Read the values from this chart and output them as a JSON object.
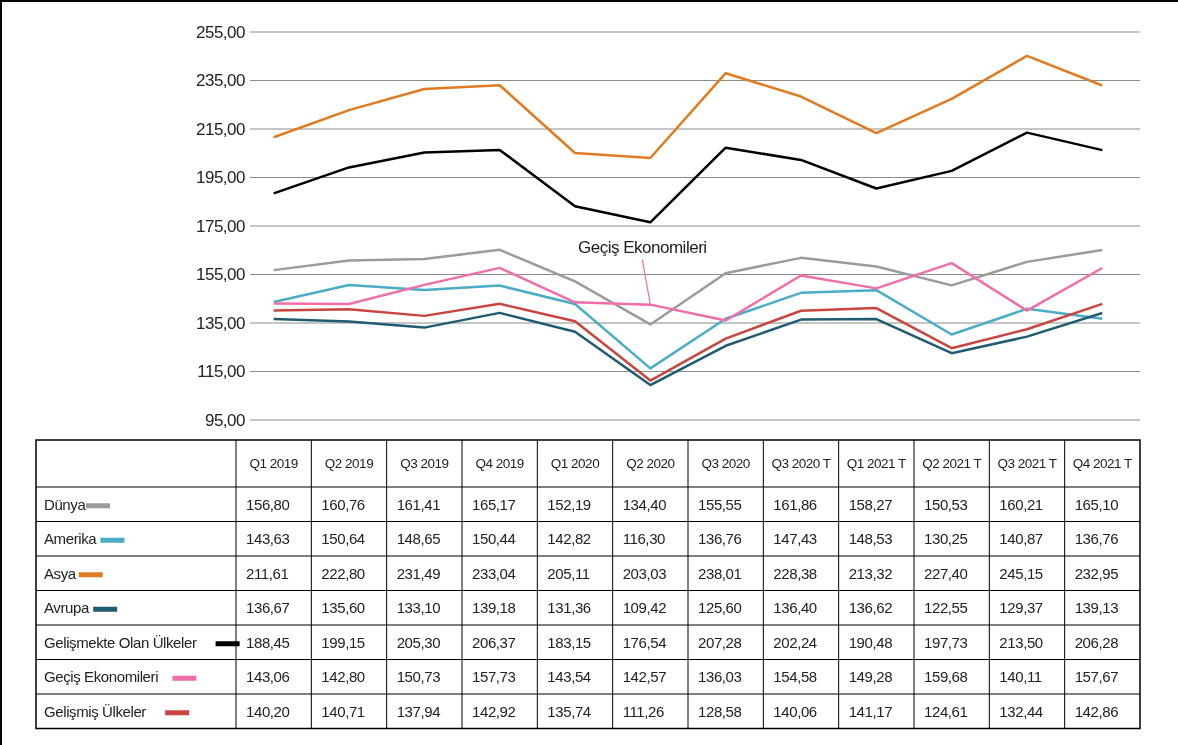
{
  "chart_data": {
    "type": "line",
    "categories": [
      "Q1 2019",
      "Q2 2019",
      "Q3 2019",
      "Q4 2019",
      "Q1 2020",
      "Q2 2020",
      "Q3 2020",
      "Q3 2020 T",
      "Q1 2021 T",
      "Q2 2021 T",
      "Q3 2021 T",
      "Q4 2021 T"
    ],
    "series": [
      {
        "name": "Dünya",
        "color": "#9b9b9b",
        "values": [
          156.8,
          160.76,
          161.41,
          165.17,
          152.19,
          134.4,
          155.55,
          161.86,
          158.27,
          150.53,
          160.21,
          165.1
        ],
        "value_labels": [
          "156,80",
          "160,76",
          "161,41",
          "165,17",
          "152,19",
          "134,40",
          "155,55",
          "161,86",
          "158,27",
          "150,53",
          "160,21",
          "165,10"
        ]
      },
      {
        "name": "Amerika",
        "color": "#4bacc6",
        "values": [
          143.63,
          150.64,
          148.65,
          150.44,
          142.82,
          116.3,
          136.76,
          147.43,
          148.53,
          130.25,
          140.87,
          136.76
        ],
        "value_labels": [
          "143,63",
          "150,64",
          "148,65",
          "150,44",
          "142,82",
          "116,30",
          "136,76",
          "147,43",
          "148,53",
          "130,25",
          "140,87",
          "136,76"
        ]
      },
      {
        "name": "Asya",
        "color": "#e07b22",
        "values": [
          211.61,
          222.8,
          231.49,
          233.04,
          205.11,
          203.03,
          238.01,
          228.38,
          213.32,
          227.4,
          245.15,
          232.95
        ],
        "value_labels": [
          "211,61",
          "222,80",
          "231,49",
          "233,04",
          "205,11",
          "203,03",
          "238,01",
          "228,38",
          "213,32",
          "227,40",
          "245,15",
          "232,95"
        ]
      },
      {
        "name": "Avrupa",
        "color": "#1f5c72",
        "values": [
          136.67,
          135.6,
          133.1,
          139.18,
          131.36,
          109.42,
          125.6,
          136.4,
          136.62,
          122.55,
          129.37,
          139.13
        ],
        "value_labels": [
          "136,67",
          "135,60",
          "133,10",
          "139,18",
          "131,36",
          "109,42",
          "125,60",
          "136,40",
          "136,62",
          "122,55",
          "129,37",
          "139,13"
        ]
      },
      {
        "name": "Gelişmekte Olan Ülkeler",
        "color": "#000000",
        "values": [
          188.45,
          199.15,
          205.3,
          206.37,
          183.15,
          176.54,
          207.28,
          202.24,
          190.48,
          197.73,
          213.5,
          206.28
        ],
        "value_labels": [
          "188,45",
          "199,15",
          "205,30",
          "206,37",
          "183,15",
          "176,54",
          "207,28",
          "202,24",
          "190,48",
          "197,73",
          "213,50",
          "206,28"
        ]
      },
      {
        "name": "Geçiş Ekonomileri",
        "color": "#f06eaa",
        "values": [
          143.06,
          142.8,
          150.73,
          157.73,
          143.54,
          142.57,
          136.03,
          154.58,
          149.28,
          159.68,
          140.11,
          157.67
        ],
        "value_labels": [
          "143,06",
          "142,80",
          "150,73",
          "157,73",
          "143,54",
          "142,57",
          "136,03",
          "154,58",
          "149,28",
          "159,68",
          "140,11",
          "157,67"
        ]
      },
      {
        "name": "Gelişmiş Ülkeler",
        "color": "#c8463f",
        "values": [
          140.2,
          140.71,
          137.94,
          142.92,
          135.74,
          111.26,
          128.58,
          140.06,
          141.17,
          124.61,
          132.44,
          142.86
        ],
        "value_labels": [
          "140,20",
          "140,71",
          "137,94",
          "142,92",
          "135,74",
          "111,26",
          "128,58",
          "140,06",
          "141,17",
          "124,61",
          "132,44",
          "142,86"
        ]
      }
    ],
    "ylim": [
      95,
      255
    ],
    "yticks": [
      {
        "value": 95,
        "label": "95,00"
      },
      {
        "value": 115,
        "label": "115,00"
      },
      {
        "value": 135,
        "label": "135,00"
      },
      {
        "value": 155,
        "label": "155,00"
      },
      {
        "value": 175,
        "label": "175,00"
      },
      {
        "value": 195,
        "label": "195,00"
      },
      {
        "value": 215,
        "label": "215,00"
      },
      {
        "value": 235,
        "label": "235,00"
      },
      {
        "value": 255,
        "label": "255,00"
      }
    ],
    "grid": "y",
    "legend": "bottom",
    "marker": "none",
    "line_style": "solid",
    "data_labels": true,
    "annotations": [
      {
        "text": "Geçiş Ekonomileri",
        "x": "Q2 2020",
        "y": 142.57
      }
    ]
  }
}
